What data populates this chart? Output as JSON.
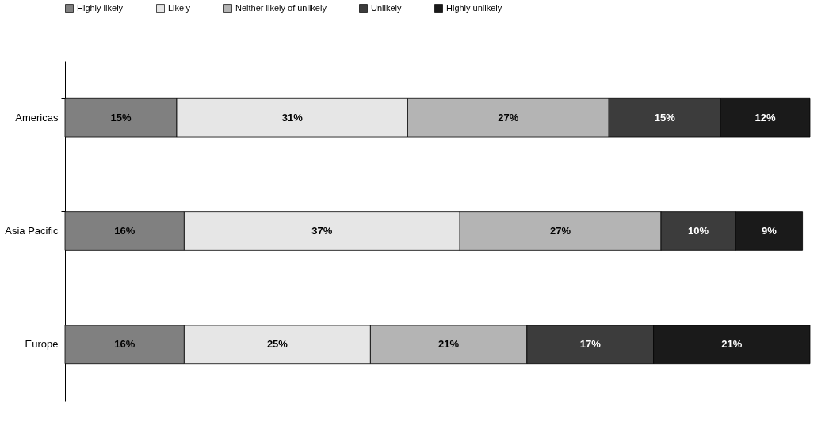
{
  "chart_data": {
    "type": "bar",
    "orientation": "horizontal",
    "stacked": true,
    "categories": [
      "Americas",
      "Asia Pacific",
      "Europe"
    ],
    "series": [
      {
        "name": "Highly likely",
        "color": "#808080",
        "values": [
          15,
          16,
          16
        ],
        "value_labels": [
          "15%",
          "16%",
          "16%"
        ]
      },
      {
        "name": "Likely",
        "color": "#e6e6e6",
        "values": [
          31,
          37,
          25
        ],
        "value_labels": [
          "31%",
          "37%",
          "25%"
        ]
      },
      {
        "name": "Neither likely of unlikely",
        "color": "#b4b4b4",
        "values": [
          27,
          27,
          21
        ],
        "value_labels": [
          "27%",
          "27%",
          "21%"
        ]
      },
      {
        "name": "Unlikely",
        "color": "#3c3c3c",
        "values": [
          15,
          10,
          17
        ],
        "value_labels": [
          "15%",
          "10%",
          "17%"
        ]
      },
      {
        "name": "Highly unlikely",
        "color": "#1a1a1a",
        "values": [
          12,
          9,
          21
        ],
        "value_labels": [
          "12%",
          "9%",
          "21%"
        ]
      }
    ],
    "xlim": [
      0,
      100
    ],
    "tick_labels": "y",
    "legend": "top"
  }
}
